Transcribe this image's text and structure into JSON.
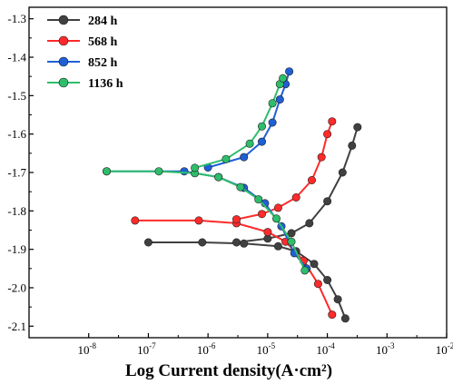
{
  "chart_data": {
    "type": "line",
    "title": "",
    "xlabel": "Log Current density(A·cm²)",
    "ylabel": "",
    "x_scale": "log",
    "xlim": [
      1e-09,
      0.01
    ],
    "ylim": [
      -2.13,
      -1.27
    ],
    "x_ticks": [
      {
        "value": 1e-08,
        "base": "10",
        "exp": "-8"
      },
      {
        "value": 1e-07,
        "base": "10",
        "exp": "-7"
      },
      {
        "value": 1e-06,
        "base": "10",
        "exp": "-6"
      },
      {
        "value": 1e-05,
        "base": "10",
        "exp": "-5"
      },
      {
        "value": 0.0001,
        "base": "10",
        "exp": "-4"
      },
      {
        "value": 0.001,
        "base": "10",
        "exp": "-3"
      },
      {
        "value": 0.01,
        "base": "10",
        "exp": "-2"
      }
    ],
    "y_ticks": [
      {
        "value": -1.3,
        "label": "-1.3"
      },
      {
        "value": -1.4,
        "label": "-1.4"
      },
      {
        "value": -1.5,
        "label": "-1.5"
      },
      {
        "value": -1.6,
        "label": "-1.6"
      },
      {
        "value": -1.7,
        "label": "-1.7"
      },
      {
        "value": -1.8,
        "label": "-1.8"
      },
      {
        "value": -1.9,
        "label": "-1.9"
      },
      {
        "value": -2.0,
        "label": "-2.0"
      },
      {
        "value": -2.1,
        "label": "-2.1"
      }
    ],
    "grid": false,
    "legend_position": "top-left",
    "series": [
      {
        "name": "284 h",
        "color": "#404040",
        "anodic": [
          [
            3e-06,
            -1.882
          ],
          [
            1e-05,
            -1.872
          ],
          [
            2.5e-05,
            -1.858
          ],
          [
            5e-05,
            -1.832
          ],
          [
            0.0001,
            -1.775
          ],
          [
            0.00018,
            -1.7
          ],
          [
            0.00026,
            -1.63
          ],
          [
            0.00032,
            -1.582
          ]
        ],
        "cathodic": [
          [
            1e-07,
            -1.882
          ],
          [
            8e-07,
            -1.882
          ],
          [
            4e-06,
            -1.885
          ],
          [
            1.5e-05,
            -1.892
          ],
          [
            3e-05,
            -1.905
          ],
          [
            6e-05,
            -1.938
          ],
          [
            0.0001,
            -1.98
          ],
          [
            0.00015,
            -2.03
          ],
          [
            0.0002,
            -2.08
          ]
        ]
      },
      {
        "name": "568 h",
        "color": "#ff2a2a",
        "anodic": [
          [
            3e-06,
            -1.822
          ],
          [
            8e-06,
            -1.808
          ],
          [
            1.5e-05,
            -1.792
          ],
          [
            3e-05,
            -1.765
          ],
          [
            5.5e-05,
            -1.72
          ],
          [
            8e-05,
            -1.66
          ],
          [
            0.0001,
            -1.6
          ],
          [
            0.00012,
            -1.567
          ]
        ],
        "cathodic": [
          [
            6e-08,
            -1.825
          ],
          [
            7e-07,
            -1.825
          ],
          [
            3e-06,
            -1.832
          ],
          [
            1e-05,
            -1.855
          ],
          [
            2e-05,
            -1.88
          ],
          [
            4e-05,
            -1.93
          ],
          [
            7e-05,
            -1.99
          ],
          [
            0.00012,
            -2.07
          ]
        ]
      },
      {
        "name": "852 h",
        "color": "#1f5fd6",
        "anodic": [
          [
            1e-06,
            -1.687
          ],
          [
            4e-06,
            -1.66
          ],
          [
            8e-06,
            -1.62
          ],
          [
            1.2e-05,
            -1.57
          ],
          [
            1.6e-05,
            -1.51
          ],
          [
            2e-05,
            -1.47
          ],
          [
            2.3e-05,
            -1.437
          ]
        ],
        "cathodic": [
          [
            2e-08,
            -1.697
          ],
          [
            4e-07,
            -1.697
          ],
          [
            1.5e-06,
            -1.712
          ],
          [
            4e-06,
            -1.74
          ],
          [
            9e-06,
            -1.78
          ],
          [
            1.7e-05,
            -1.84
          ],
          [
            2.8e-05,
            -1.91
          ],
          [
            4.5e-05,
            -1.95
          ]
        ]
      },
      {
        "name": "1136 h",
        "color": "#2ebd6b",
        "anodic": [
          [
            6e-07,
            -1.688
          ],
          [
            2e-06,
            -1.665
          ],
          [
            5e-06,
            -1.625
          ],
          [
            8e-06,
            -1.58
          ],
          [
            1.2e-05,
            -1.52
          ],
          [
            1.6e-05,
            -1.47
          ],
          [
            1.8e-05,
            -1.455
          ]
        ],
        "cathodic": [
          [
            2e-08,
            -1.697
          ],
          [
            1.5e-07,
            -1.697
          ],
          [
            6e-07,
            -1.702
          ],
          [
            1.5e-06,
            -1.712
          ],
          [
            3.5e-06,
            -1.738
          ],
          [
            7e-06,
            -1.77
          ],
          [
            1.4e-05,
            -1.82
          ],
          [
            2.5e-05,
            -1.88
          ],
          [
            4.2e-05,
            -1.955
          ]
        ]
      }
    ]
  }
}
